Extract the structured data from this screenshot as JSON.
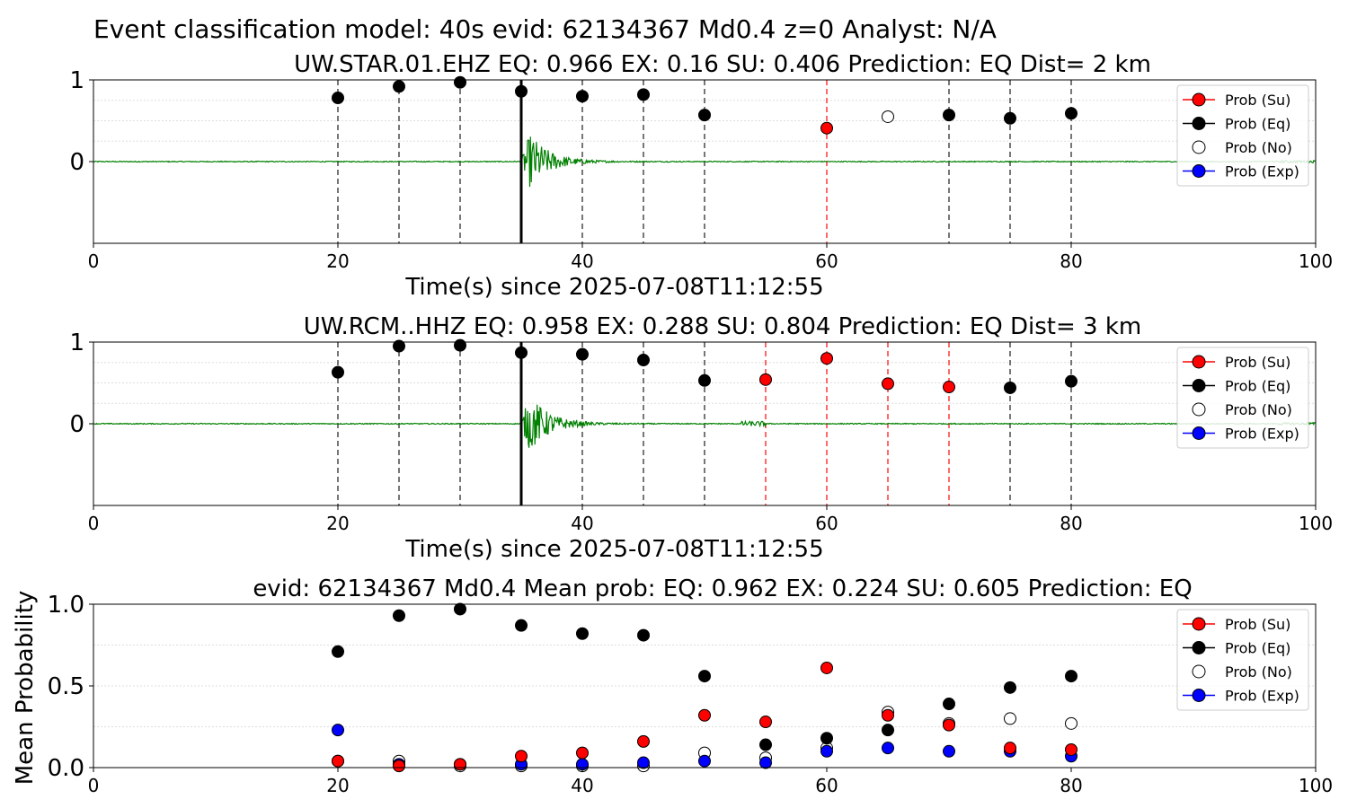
{
  "figure": {
    "suptitle": "Event classification model: 40s evid: 62134367 Md0.4 z=0 Analyst: N/A",
    "colors": {
      "su": "#ff0000",
      "eq": "#000000",
      "no": "#ffffff",
      "exp": "#0000ff",
      "waveform": "#008000",
      "dashed_black": "#555555",
      "dashed_red": "#ff4444",
      "grid": "#dddddd"
    },
    "legend": [
      "Prob (Su)",
      "Prob (Eq)",
      "Prob (No)",
      "Prob (Exp)"
    ]
  },
  "chart_data": [
    {
      "type": "scatter",
      "title": "UW.STAR.01.EHZ   EQ: 0.966  EX: 0.16  SU: 0.406   Prediction: EQ    Dist= 2 km",
      "xlabel": "Time(s) since 2025-07-08T11:12:55",
      "ylabel": "",
      "xlim": [
        0,
        100
      ],
      "ylim": [
        -1,
        1
      ],
      "xticks": [
        "0",
        "20",
        "40",
        "60",
        "80",
        "100"
      ],
      "yticks": [
        "0",
        "1"
      ],
      "legend_position": "top-right",
      "arrival_time": 35,
      "window_times": [
        20,
        25,
        30,
        35,
        40,
        45,
        50,
        55,
        60,
        65,
        70,
        75,
        80
      ],
      "red_window_lines": [
        60
      ],
      "black_window_lines": [
        20,
        25,
        30,
        40,
        45,
        50,
        70,
        75,
        80
      ],
      "series": [
        {
          "name": "Prob (Eq)",
          "x": [
            20,
            25,
            30,
            35,
            40,
            45,
            50,
            70,
            75,
            80
          ],
          "y": [
            0.78,
            0.92,
            0.97,
            0.86,
            0.8,
            0.82,
            0.57,
            0.57,
            0.53,
            0.59
          ]
        },
        {
          "name": "Prob (Su)",
          "x": [
            60
          ],
          "y": [
            0.41
          ]
        },
        {
          "name": "Prob (No)",
          "x": [
            65
          ],
          "y": [
            0.55
          ]
        }
      ]
    },
    {
      "type": "scatter",
      "title": "UW.RCM..HHZ   EQ: 0.958  EX: 0.288  SU: 0.804   Prediction: EQ    Dist= 3 km",
      "xlabel": "Time(s) since 2025-07-08T11:12:55",
      "ylabel": "",
      "xlim": [
        0,
        100
      ],
      "ylim": [
        -1,
        1
      ],
      "xticks": [
        "0",
        "20",
        "40",
        "60",
        "80",
        "100"
      ],
      "yticks": [
        "0",
        "1"
      ],
      "legend_position": "top-right",
      "arrival_time": 35,
      "window_times": [
        20,
        25,
        30,
        35,
        40,
        45,
        50,
        55,
        60,
        65,
        70,
        75,
        80
      ],
      "red_window_lines": [
        55,
        60,
        65,
        70
      ],
      "black_window_lines": [
        20,
        25,
        30,
        40,
        45,
        50,
        75,
        80
      ],
      "series": [
        {
          "name": "Prob (Eq)",
          "x": [
            20,
            25,
            30,
            35,
            40,
            45,
            50,
            75,
            80
          ],
          "y": [
            0.63,
            0.95,
            0.96,
            0.87,
            0.85,
            0.78,
            0.53,
            0.44,
            0.52
          ]
        },
        {
          "name": "Prob (Su)",
          "x": [
            55,
            60,
            65,
            70
          ],
          "y": [
            0.54,
            0.8,
            0.49,
            0.45
          ]
        }
      ]
    },
    {
      "type": "scatter",
      "title": "evid: 62134367  Md0.4   Mean prob:   EQ: 0.962  EX: 0.224  SU: 0.605   Prediction: EQ",
      "xlabel": "",
      "ylabel": "Mean Probability",
      "xlim": [
        0,
        100
      ],
      "ylim": [
        0,
        1
      ],
      "xticks": [
        "0",
        "20",
        "40",
        "60",
        "80",
        "100"
      ],
      "yticks": [
        "0.0",
        "0.5",
        "1.0"
      ],
      "legend_position": "top-right",
      "x": [
        20,
        25,
        30,
        35,
        40,
        45,
        50,
        55,
        60,
        65,
        70,
        75,
        80
      ],
      "series": [
        {
          "name": "Prob (No)",
          "y": [
            0.04,
            0.04,
            0.01,
            0.01,
            0.01,
            0.01,
            0.09,
            0.06,
            0.12,
            0.34,
            0.27,
            0.3,
            0.27
          ]
        },
        {
          "name": "Prob (Exp)",
          "y": [
            0.23,
            0.02,
            0.02,
            0.02,
            0.02,
            0.03,
            0.04,
            0.03,
            0.1,
            0.12,
            0.1,
            0.1,
            0.07
          ]
        },
        {
          "name": "Prob (Eq)",
          "y": [
            0.71,
            0.93,
            0.97,
            0.87,
            0.82,
            0.81,
            0.56,
            0.14,
            0.18,
            0.23,
            0.39,
            0.49,
            0.56
          ]
        },
        {
          "name": "Prob (Su)",
          "y": [
            0.04,
            0.01,
            0.02,
            0.07,
            0.09,
            0.16,
            0.32,
            0.28,
            0.61,
            0.32,
            0.26,
            0.12,
            0.11
          ]
        }
      ]
    }
  ]
}
